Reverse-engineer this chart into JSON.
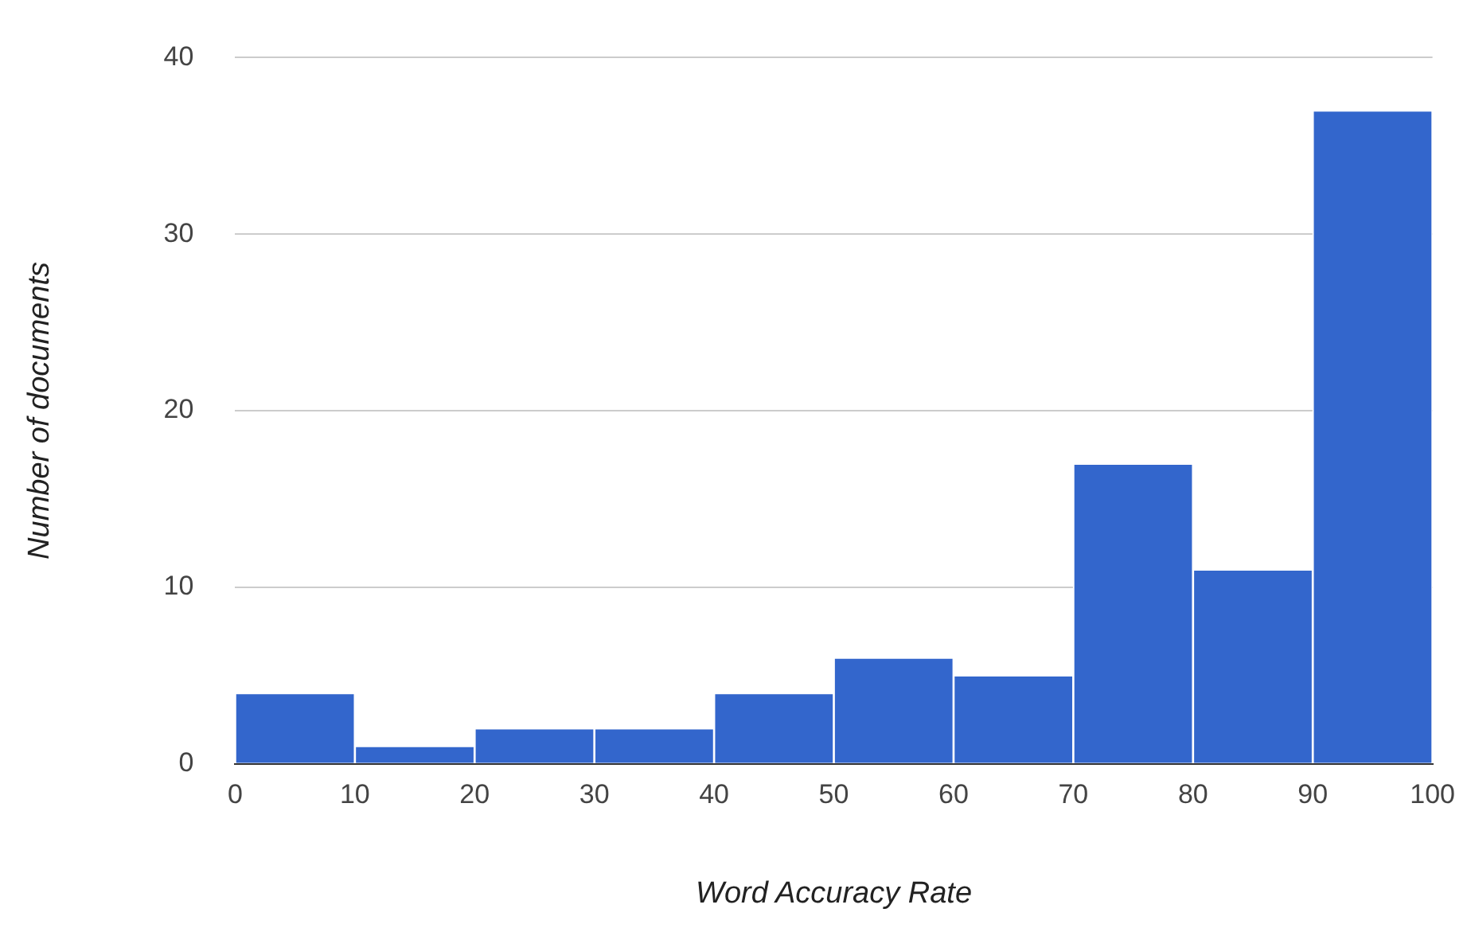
{
  "chart_data": {
    "type": "histogram",
    "xlabel": "Word Accuracy Rate",
    "ylabel": "Number of documents",
    "bins": [
      0,
      10,
      20,
      30,
      40,
      50,
      60,
      70,
      80,
      90,
      100
    ],
    "values": [
      4,
      1,
      2,
      2,
      4,
      6,
      5,
      17,
      11,
      37
    ],
    "color": "#3366cc",
    "xlim": [
      0,
      100
    ],
    "xticks": [
      0,
      10,
      20,
      30,
      40,
      50,
      60,
      70,
      80,
      90,
      100
    ],
    "ylim": [
      0,
      40
    ],
    "yticks": [
      0,
      10,
      20,
      30,
      40
    ],
    "grid": "y",
    "legend": false
  }
}
